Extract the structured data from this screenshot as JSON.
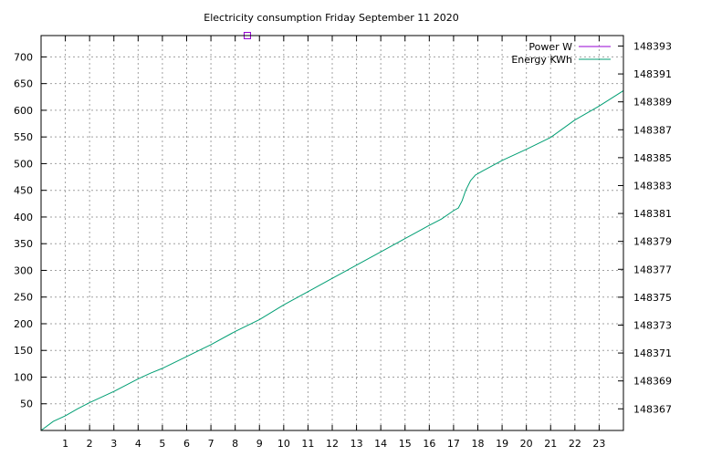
{
  "chart_data": {
    "type": "line",
    "title": "Electricity consumption Friday September 11 2020",
    "xlabel": "",
    "ylabel": "",
    "y2label": "",
    "xlim": [
      0,
      24
    ],
    "ylim": [
      0,
      740
    ],
    "y2lim": [
      148365.45,
      148393.75
    ],
    "grid": true,
    "legend_position": "top-right",
    "xticks": [
      1,
      2,
      3,
      4,
      5,
      6,
      7,
      8,
      9,
      10,
      11,
      12,
      13,
      14,
      15,
      16,
      17,
      18,
      19,
      20,
      21,
      22,
      23
    ],
    "yticks": [
      50,
      100,
      150,
      200,
      250,
      300,
      350,
      400,
      450,
      500,
      550,
      600,
      650,
      700
    ],
    "y2ticks": [
      148367,
      148369,
      148371,
      148373,
      148375,
      148377,
      148379,
      148381,
      148383,
      148385,
      148387,
      148389,
      148391,
      148393
    ],
    "series": [
      {
        "name": "Power W",
        "axis": "y",
        "color": "#9400d3",
        "marker": "square",
        "x": [
          8.5
        ],
        "y": [
          740
        ]
      },
      {
        "name": "Energy KWh",
        "axis": "y2",
        "color": "#009e73",
        "x": [
          0,
          0.5,
          1,
          1.5,
          2,
          3,
          4,
          4.5,
          5,
          6,
          7,
          8,
          9,
          10,
          11,
          12,
          13,
          14,
          15,
          16,
          16.5,
          17,
          17.2,
          17.35,
          17.5,
          17.7,
          17.9,
          18.2,
          19,
          19.5,
          20,
          21,
          22,
          23,
          24
        ],
        "y": [
          148365.45,
          148366.1,
          148366.5,
          148367.0,
          148367.45,
          148368.25,
          148369.15,
          148369.55,
          148369.9,
          148370.75,
          148371.6,
          148372.55,
          148373.4,
          148374.45,
          148375.4,
          148376.35,
          148377.3,
          148378.25,
          148379.2,
          148380.15,
          148380.6,
          148381.2,
          148381.4,
          148381.9,
          148382.65,
          148383.35,
          148383.75,
          148384.05,
          148384.8,
          148385.2,
          148385.6,
          148386.45,
          148387.7,
          148388.7,
          148389.8
        ]
      }
    ]
  }
}
